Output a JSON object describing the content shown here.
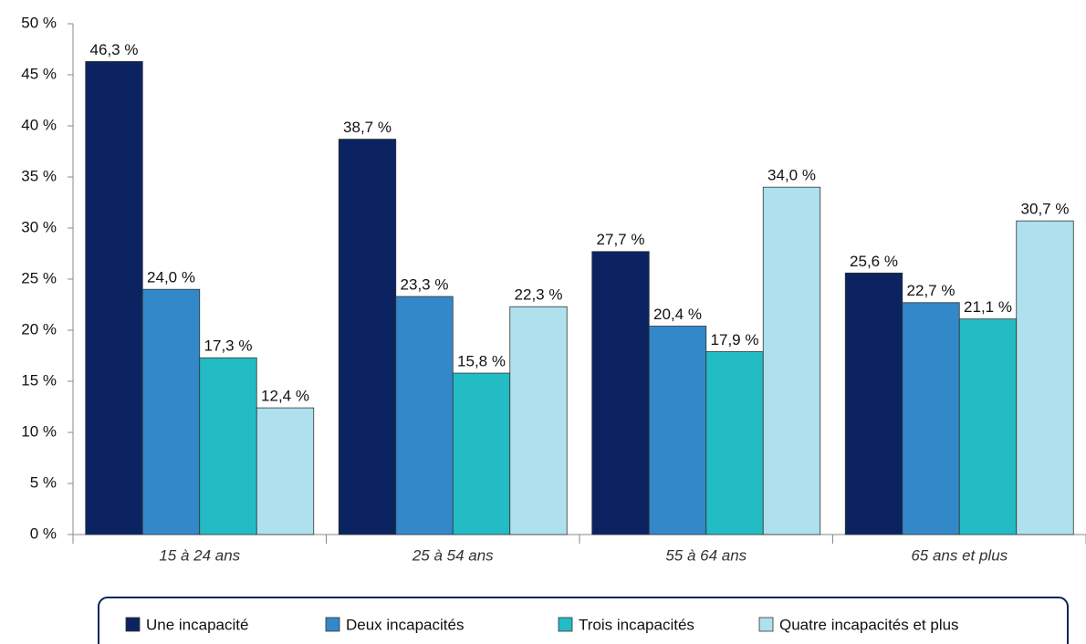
{
  "chart_data": {
    "type": "bar",
    "categories": [
      "15 à 24 ans",
      "25 à 54 ans",
      "55 à 64 ans",
      "65 ans et plus"
    ],
    "series": [
      {
        "name": "Une incapacité",
        "color": "#0b2461",
        "values": [
          46.3,
          38.7,
          27.7,
          25.6
        ],
        "value_labels": [
          "46,3 %",
          "38,7 %",
          "27,7 %",
          "25,6 %"
        ]
      },
      {
        "name": "Deux incapacités",
        "color": "#3388c9",
        "values": [
          24.0,
          23.3,
          20.4,
          22.7
        ],
        "value_labels": [
          "24,0 %",
          "23,3 %",
          "20,4 %",
          "22,7 %"
        ]
      },
      {
        "name": "Trois incapacités",
        "color": "#23bcc4",
        "values": [
          17.3,
          15.8,
          17.9,
          21.1
        ],
        "value_labels": [
          "17,3 %",
          "15,8 %",
          "17,9 %",
          "21,1 %"
        ]
      },
      {
        "name": "Quatre incapacités et plus",
        "color": "#afe0ee",
        "values": [
          12.4,
          22.3,
          34.0,
          30.7
        ],
        "value_labels": [
          "12,4 %",
          "22,3 %",
          "34,0 %",
          "30,7 %"
        ]
      }
    ],
    "ylim": [
      0,
      50
    ],
    "yticks": [
      {
        "value": 0,
        "label": "0 %"
      },
      {
        "value": 5,
        "label": "5 %"
      },
      {
        "value": 10,
        "label": "10 %"
      },
      {
        "value": 15,
        "label": "15 %"
      },
      {
        "value": 20,
        "label": "20 %"
      },
      {
        "value": 25,
        "label": "25 %"
      },
      {
        "value": 30,
        "label": "30 %"
      },
      {
        "value": 35,
        "label": "35 %"
      },
      {
        "value": 40,
        "label": "40 %"
      },
      {
        "value": 45,
        "label": "45 %"
      },
      {
        "value": 50,
        "label": "50 %"
      }
    ],
    "legend": "bottom"
  }
}
